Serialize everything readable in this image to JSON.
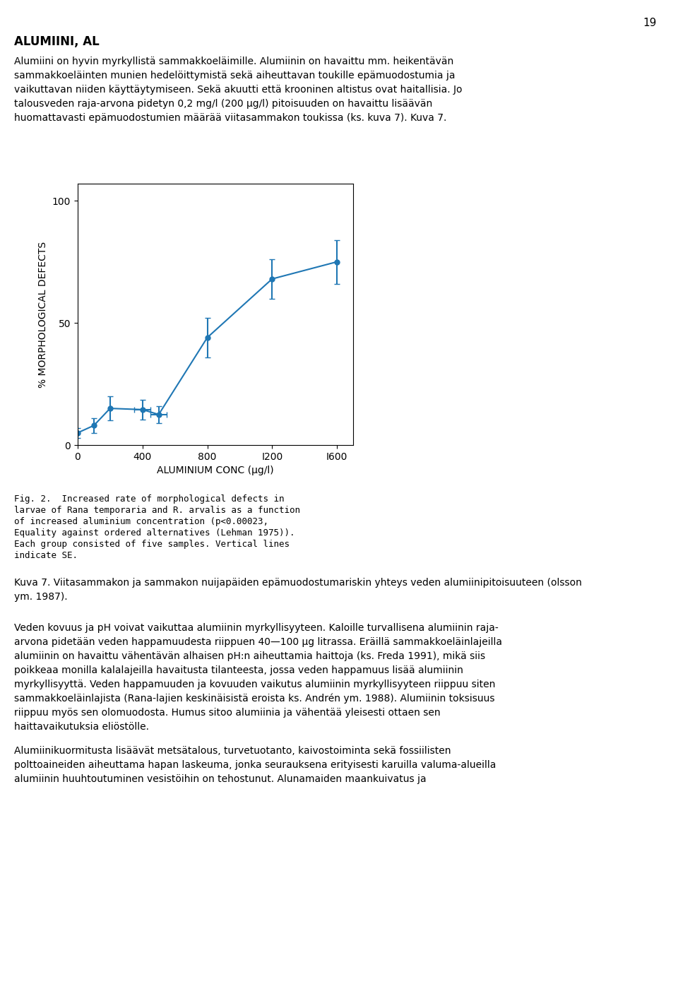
{
  "chart_data": {
    "type": "line",
    "x": [
      0,
      100,
      200,
      400,
      500,
      800,
      1200,
      1600
    ],
    "values": [
      5.0,
      8.0,
      15.0,
      14.5,
      12.5,
      44.0,
      68.0,
      75.0
    ],
    "y_err_lower": [
      2.0,
      3.0,
      5.0,
      4.0,
      3.5,
      8.0,
      8.0,
      9.0
    ],
    "y_err_upper": [
      2.0,
      3.0,
      5.0,
      4.0,
      3.5,
      8.0,
      8.0,
      9.0
    ],
    "x_err_lower": [
      0,
      0,
      0,
      50,
      50,
      0,
      0,
      0
    ],
    "x_err_upper": [
      0,
      0,
      0,
      50,
      50,
      0,
      0,
      0
    ],
    "x_label": "ALUMINIUM CONC (μg/l)",
    "y_label": "% MORPHOLOGICAL DEFECTS",
    "xlim": [
      0,
      1700
    ],
    "ylim": [
      0,
      107
    ],
    "xticks": [
      0,
      400,
      800,
      {
        "value": 1200,
        "label": "I200"
      },
      {
        "value": 1600,
        "label": "I600"
      }
    ],
    "yticks": [
      0,
      50,
      100
    ],
    "marker": "o",
    "line_style": "solid",
    "grid": false
  },
  "page_texts": {
    "page_number": "19",
    "heading": "ALUMIINI, AL",
    "para1_lines": [
      "Alumiini on hyvin myrkyllistä sammakkoeläimille. Alumiinin on havaittu mm. heikentävän",
      "sammakkoeläinten munien hedelöittymistä sekä aiheuttavan toukille epämuodostumia ja",
      "vaikuttavan niiden käyttäytymiseen. Sekä akuutti että krooninen altistus ovat haitallisia. Jo",
      "talousveden raja-arvona pidetyn 0,2 mg/l (200 μg/l) pitoisuuden on havaittu lisäävän",
      "huomattavasti epämuodostumien määrää viitasammakon toukissa (ks. kuva 7). Kuva 7."
    ],
    "caption_lines": [
      "Fig. 2.  Increased rate of morphological defects in",
      "larvae of Rana temporaria and R. arvalis as a function",
      "of increased aluminium concentration (p<0.00023,",
      "Equality against ordered alternatives (Lehman 1975)).",
      "Each group consisted of five samples. Vertical lines",
      "indicate SE."
    ],
    "figure_label_lines": [
      "Kuva 7. Viitasammakon ja sammakon nuijapäiden epämuodostumariskin yhteys veden alumiinipitoisuuteen (olsson",
      "ym. 1987)."
    ],
    "para2_lines": [
      "Veden kovuus ja pH voivat vaikuttaa alumiinin myrkyllisyyteen. Kaloille turvallisena alumiinin raja-",
      "arvona pidetään veden happamuudesta riippuen 40—100 μg litrassa. Eräillä sammakkoeläinlajeilla",
      "alumiinin on havaittu vähentävän alhaisen pH:n aiheuttamia haittoja (ks. Freda 1991), mikä siis",
      "poikkeaa monilla kalalajeilla havaitusta tilanteesta, jossa veden happamuus lisää alumiinin",
      "myrkyllisyyttä. Veden happamuuden ja kovuuden vaikutus alumiinin myrkyllisyyteen riippuu siten",
      "sammakkoeläinlajista (Rana-lajien keskinäisistä eroista ks. Andrén ym. 1988). Alumiinin toksisuus",
      "riippuu myös sen olomuodosta. Humus sitoo alumiinia ja vähentää yleisesti ottaen sen",
      "haittavaikutuksia eliöstölle."
    ],
    "para3_lines": [
      "Alumiinikuormitusta lisäävät metsätalous, turvetuotanto, kaivostoiminta sekä fossiilisten",
      "polttoaineiden aiheuttama hapan laskeuma, jonka seurauksena erityisesti karuilla valuma-alueilla",
      "alumiinin huuhtoutuminen vesistöihin on tehostunut. Alunamaiden maankuivatus ja"
    ]
  }
}
